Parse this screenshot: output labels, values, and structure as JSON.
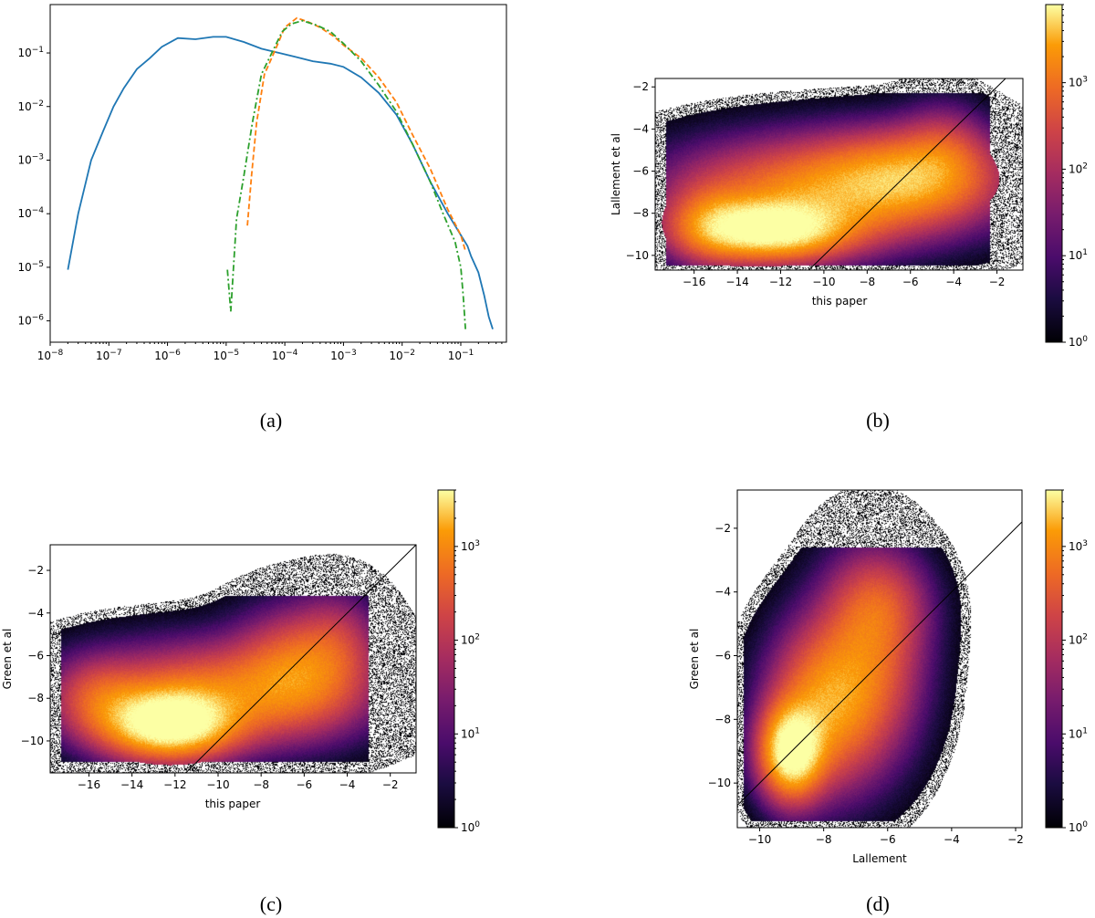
{
  "captions": {
    "a": "(a)",
    "b": "(b)",
    "c": "(c)",
    "d": "(d)"
  },
  "colors": {
    "blue": "#1f77b4",
    "orange": "#ff7f0e",
    "green": "#2ca02c"
  },
  "chart_data": [
    {
      "id": "a",
      "type": "line",
      "xscale": "log",
      "yscale": "log",
      "xlim": [
        1e-08,
        0.6
      ],
      "ylim": [
        4e-07,
        0.8
      ],
      "xticks": [
        {
          "v": 1e-08,
          "base": "10",
          "exp": "−8"
        },
        {
          "v": 1e-07,
          "base": "10",
          "exp": "−7"
        },
        {
          "v": 1e-06,
          "base": "10",
          "exp": "−6"
        },
        {
          "v": 1e-05,
          "base": "10",
          "exp": "−5"
        },
        {
          "v": 0.0001,
          "base": "10",
          "exp": "−4"
        },
        {
          "v": 0.001,
          "base": "10",
          "exp": "−3"
        },
        {
          "v": 0.01,
          "base": "10",
          "exp": "−2"
        },
        {
          "v": 0.1,
          "base": "10",
          "exp": "−1"
        }
      ],
      "yticks": [
        {
          "v": 1e-06,
          "base": "10",
          "exp": "−6"
        },
        {
          "v": 1e-05,
          "base": "10",
          "exp": "−5"
        },
        {
          "v": 0.0001,
          "base": "10",
          "exp": "−4"
        },
        {
          "v": 0.001,
          "base": "10",
          "exp": "−3"
        },
        {
          "v": 0.01,
          "base": "10",
          "exp": "−2"
        },
        {
          "v": 0.1,
          "base": "10",
          "exp": "−1"
        }
      ],
      "series": [
        {
          "name": "blue-solid",
          "style": "solid",
          "color": "#1f77b4",
          "x": [
            2e-08,
            3e-08,
            5e-08,
            8e-08,
            1.2e-07,
            1.8e-07,
            3e-07,
            5e-07,
            8e-07,
            1.5e-06,
            3e-06,
            6e-06,
            1e-05,
            2e-05,
            4e-05,
            8e-05,
            0.00015,
            0.0003,
            0.0006,
            0.001,
            0.002,
            0.004,
            0.008,
            0.015,
            0.03,
            0.06,
            0.1,
            0.13,
            0.15,
            0.2,
            0.25,
            0.3,
            0.35
          ],
          "y": [
            9e-06,
            0.0001,
            0.001,
            0.0035,
            0.01,
            0.022,
            0.05,
            0.08,
            0.13,
            0.19,
            0.18,
            0.2,
            0.2,
            0.16,
            0.12,
            0.1,
            0.085,
            0.07,
            0.063,
            0.055,
            0.035,
            0.018,
            0.007,
            0.002,
            0.0004,
            0.0001,
            4e-05,
            2.5e-05,
            1.6e-05,
            8e-06,
            3e-06,
            1.2e-06,
            7e-07
          ]
        },
        {
          "name": "orange-dashed",
          "style": "dashed",
          "color": "#ff7f0e",
          "x": [
            2.3e-05,
            2.7e-05,
            3.3e-05,
            4.5e-05,
            7e-05,
            0.0001,
            0.00016,
            0.00025,
            0.0004,
            0.0007,
            0.001,
            0.002,
            0.004,
            0.008,
            0.015,
            0.03,
            0.06,
            0.1,
            0.12
          ],
          "y": [
            6e-05,
            0.0005,
            0.005,
            0.04,
            0.12,
            0.3,
            0.45,
            0.38,
            0.3,
            0.2,
            0.14,
            0.08,
            0.035,
            0.012,
            0.003,
            0.0007,
            0.00012,
            4e-05,
            2e-05
          ]
        },
        {
          "name": "green-dashdot",
          "style": "dashdot",
          "color": "#2ca02c",
          "x": [
            1.05e-05,
            1.2e-05,
            1.5e-05,
            2e-05,
            2.8e-05,
            4e-05,
            6e-05,
            9e-05,
            0.00013,
            0.0002,
            0.00035,
            0.0006,
            0.001,
            0.002,
            0.004,
            0.008,
            0.015,
            0.03,
            0.05,
            0.08,
            0.1,
            0.11,
            0.12
          ],
          "y": [
            9e-06,
            1.5e-06,
            8e-05,
            0.0005,
            0.005,
            0.04,
            0.1,
            0.25,
            0.35,
            0.4,
            0.33,
            0.25,
            0.15,
            0.07,
            0.025,
            0.008,
            0.002,
            0.0004,
            0.0001,
            3e-05,
            1e-05,
            3e-06,
            7e-07
          ]
        }
      ]
    },
    {
      "id": "b",
      "type": "heatmap",
      "xlabel": "this paper",
      "ylabel": "Lallement et al",
      "xlim": [
        -17.8,
        -0.8
      ],
      "ylim": [
        -10.7,
        -1.6
      ],
      "xticks": [
        -16,
        -14,
        -12,
        -10,
        -8,
        -6,
        -4,
        -2
      ],
      "yticks": [
        -10,
        -8,
        -6,
        -4,
        -2
      ],
      "diagonal": true,
      "blobs": [
        {
          "cx": -12.5,
          "cy": -8.8,
          "sx": 2.3,
          "sy": 0.9,
          "w": 3.2
        },
        {
          "cx": -10,
          "cy": -7,
          "sx": 4,
          "sy": 1.5,
          "w": 1.8
        },
        {
          "cx": -6,
          "cy": -6.2,
          "sx": 2.5,
          "sy": 1.3,
          "w": 1.5
        },
        {
          "cx": -15.2,
          "cy": -8.5,
          "sx": 1.2,
          "sy": 1.2,
          "w": 0.9
        },
        {
          "cx": -4.5,
          "cy": -5,
          "sx": 1.2,
          "sy": 1.3,
          "w": 0.6
        }
      ],
      "clip": {
        "xmin": -17.3,
        "xmax": -2.3,
        "ymin": -10.5,
        "ymax": -2.3
      },
      "colorbar": {
        "scale": "log",
        "min": 1,
        "max": 8000,
        "ticks": [
          {
            "v": 1,
            "base": "10",
            "exp": "0"
          },
          {
            "v": 10,
            "base": "10",
            "exp": "1"
          },
          {
            "v": 100,
            "base": "10",
            "exp": "2"
          },
          {
            "v": 1000,
            "base": "10",
            "exp": "3"
          }
        ]
      }
    },
    {
      "id": "c",
      "type": "heatmap",
      "xlabel": "this paper",
      "ylabel": "Green et al",
      "xlim": [
        -17.8,
        -0.8
      ],
      "ylim": [
        -11.5,
        -0.8
      ],
      "xticks": [
        -16,
        -14,
        -12,
        -10,
        -8,
        -6,
        -4,
        -2
      ],
      "yticks": [
        -10,
        -8,
        -6,
        -4,
        -2
      ],
      "diagonal": true,
      "blobs": [
        {
          "cx": -12.3,
          "cy": -9.2,
          "sx": 1.9,
          "sy": 1.0,
          "w": 3.6
        },
        {
          "cx": -10,
          "cy": -7.8,
          "sx": 3.8,
          "sy": 1.4,
          "w": 1.5
        },
        {
          "cx": -6.2,
          "cy": -6.6,
          "sx": 1.8,
          "sy": 1.6,
          "w": 1.3
        },
        {
          "cx": -15.5,
          "cy": -8,
          "sx": 1.3,
          "sy": 1.1,
          "w": 0.8
        },
        {
          "cx": -4.5,
          "cy": -5.3,
          "sx": 1.2,
          "sy": 1.4,
          "w": 0.5
        }
      ],
      "clip": {
        "xmin": -17.3,
        "xmax": -3.0,
        "ymin": -11.0,
        "ymax": -3.2
      },
      "colorbar": {
        "scale": "log",
        "min": 1,
        "max": 4000,
        "ticks": [
          {
            "v": 1,
            "base": "10",
            "exp": "0"
          },
          {
            "v": 10,
            "base": "10",
            "exp": "1"
          },
          {
            "v": 100,
            "base": "10",
            "exp": "2"
          },
          {
            "v": 1000,
            "base": "10",
            "exp": "3"
          }
        ]
      }
    },
    {
      "id": "d",
      "type": "heatmap",
      "xlabel": "Lallement",
      "ylabel": "Green et al",
      "xlim": [
        -10.7,
        -1.8
      ],
      "ylim": [
        -11.4,
        -0.8
      ],
      "xticks": [
        -10,
        -8,
        -6,
        -4,
        -2
      ],
      "yticks": [
        -10,
        -8,
        -6,
        -4,
        -2
      ],
      "diagonal": true,
      "blobs": [
        {
          "cx": -9.0,
          "cy": -9.0,
          "sx": 0.6,
          "sy": 0.9,
          "w": 3.4
        },
        {
          "cx": -8.0,
          "cy": -7.6,
          "sx": 1.0,
          "sy": 1.5,
          "w": 1.8
        },
        {
          "cx": -6.6,
          "cy": -6.2,
          "sx": 1.0,
          "sy": 1.8,
          "w": 1.3
        },
        {
          "cx": -6.2,
          "cy": -4.4,
          "sx": 0.9,
          "sy": 1.0,
          "w": 0.7
        }
      ],
      "clip": {
        "xmin": -10.5,
        "xmax": -3.0,
        "ymin": -11.2,
        "ymax": -2.6
      },
      "colorbar": {
        "scale": "log",
        "min": 1,
        "max": 4000,
        "ticks": [
          {
            "v": 1,
            "base": "10",
            "exp": "0"
          },
          {
            "v": 10,
            "base": "10",
            "exp": "1"
          },
          {
            "v": 100,
            "base": "10",
            "exp": "2"
          },
          {
            "v": 1000,
            "base": "10",
            "exp": "3"
          }
        ]
      }
    }
  ]
}
